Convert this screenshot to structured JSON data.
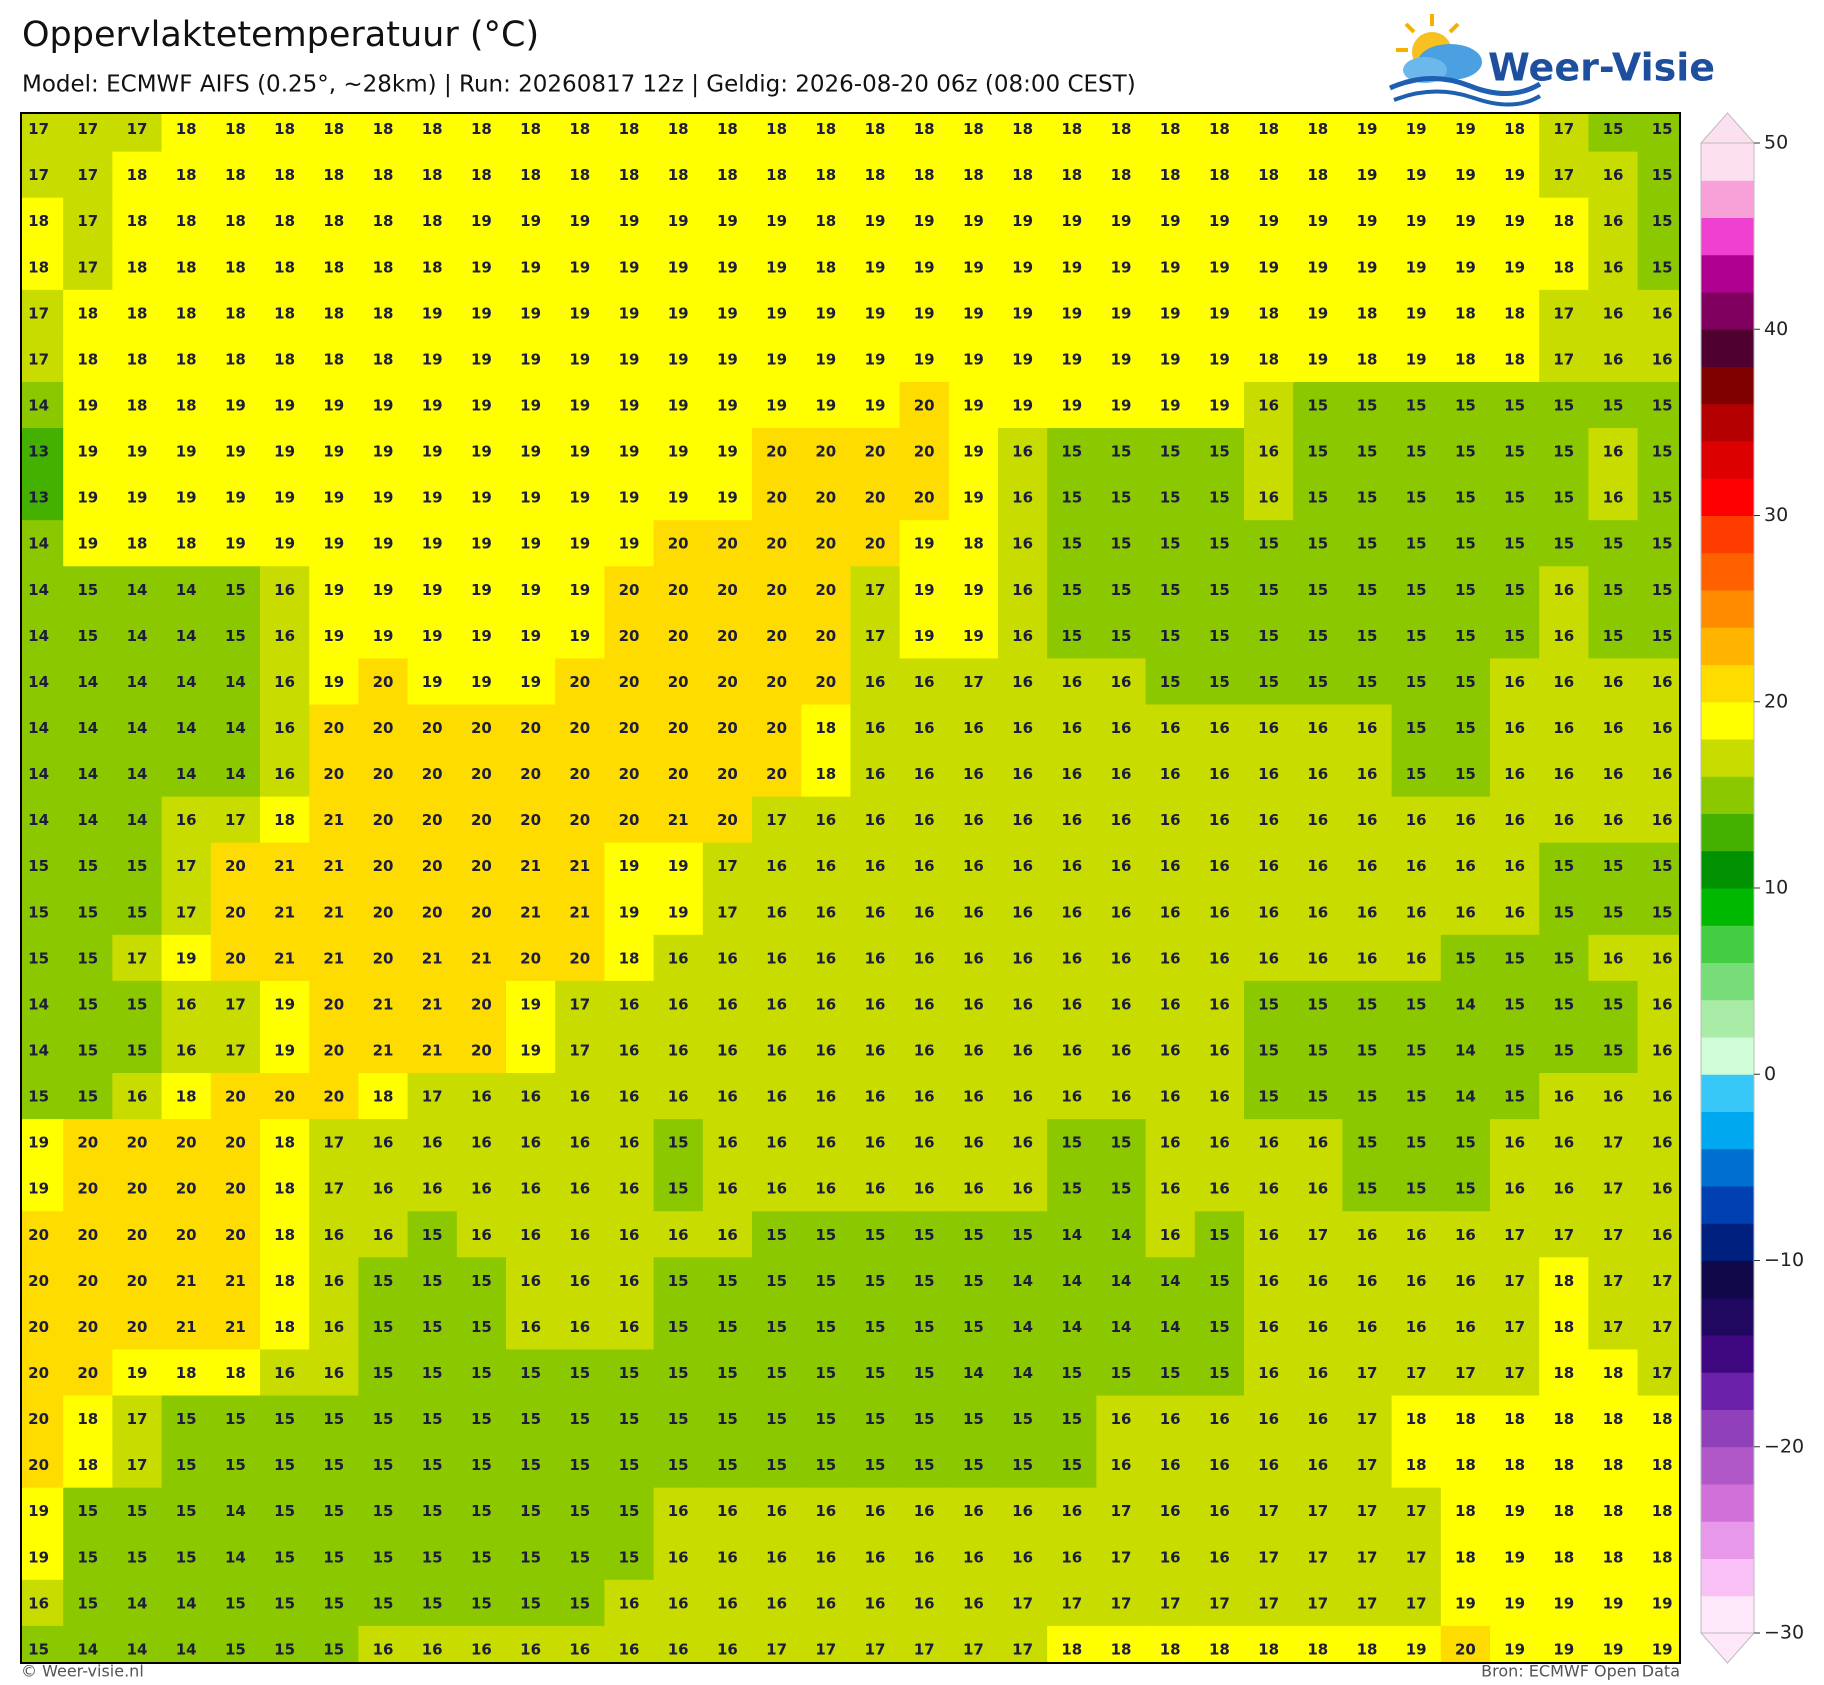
{
  "header": {
    "title": "Oppervlaktetemperatuur (°C)",
    "subtitle": "Model: ECMWF AIFS (0.25°, ~28km)  |  Run: 20260817 12z  |  Geldig: 2026-08-20 06z (08:00 CEST)"
  },
  "logo": "Weer-Visie",
  "map": {
    "grid": [
      [
        17,
        17,
        17,
        18,
        18,
        18,
        18,
        18,
        18,
        18,
        18,
        18,
        18,
        18,
        18,
        18,
        18,
        18,
        18,
        18,
        18,
        18,
        18,
        18,
        18,
        18,
        18,
        19,
        19,
        19,
        18,
        17,
        15,
        15
      ],
      [
        17,
        17,
        18,
        18,
        18,
        18,
        18,
        18,
        18,
        18,
        18,
        18,
        18,
        18,
        18,
        18,
        18,
        18,
        18,
        18,
        18,
        18,
        18,
        18,
        18,
        18,
        18,
        19,
        19,
        19,
        19,
        17,
        16,
        15
      ],
      [
        18,
        17,
        18,
        18,
        18,
        18,
        18,
        18,
        18,
        19,
        19,
        19,
        19,
        19,
        19,
        19,
        18,
        19,
        19,
        19,
        19,
        19,
        19,
        19,
        19,
        19,
        19,
        19,
        19,
        19,
        19,
        18,
        16,
        15
      ],
      [
        18,
        17,
        18,
        18,
        18,
        18,
        18,
        18,
        18,
        19,
        19,
        19,
        19,
        19,
        19,
        19,
        18,
        19,
        19,
        19,
        19,
        19,
        19,
        19,
        19,
        19,
        19,
        19,
        19,
        19,
        19,
        18,
        16,
        15
      ],
      [
        17,
        18,
        18,
        18,
        18,
        18,
        18,
        18,
        19,
        19,
        19,
        19,
        19,
        19,
        19,
        19,
        19,
        19,
        19,
        19,
        19,
        19,
        19,
        19,
        19,
        18,
        19,
        18,
        19,
        18,
        18,
        17,
        16,
        16
      ],
      [
        17,
        18,
        18,
        18,
        18,
        18,
        18,
        18,
        19,
        19,
        19,
        19,
        19,
        19,
        19,
        19,
        19,
        19,
        19,
        19,
        19,
        19,
        19,
        19,
        19,
        18,
        19,
        18,
        19,
        18,
        18,
        17,
        16,
        16
      ],
      [
        14,
        19,
        18,
        18,
        19,
        19,
        19,
        19,
        19,
        19,
        19,
        19,
        19,
        19,
        19,
        19,
        19,
        19,
        20,
        19,
        19,
        19,
        19,
        19,
        19,
        16,
        15,
        15,
        15,
        15,
        15,
        15,
        15,
        15
      ],
      [
        13,
        19,
        19,
        19,
        19,
        19,
        19,
        19,
        19,
        19,
        19,
        19,
        19,
        19,
        19,
        20,
        20,
        20,
        20,
        19,
        16,
        15,
        15,
        15,
        15,
        16,
        15,
        15,
        15,
        15,
        15,
        15,
        16,
        15
      ],
      [
        13,
        19,
        19,
        19,
        19,
        19,
        19,
        19,
        19,
        19,
        19,
        19,
        19,
        19,
        19,
        20,
        20,
        20,
        20,
        19,
        16,
        15,
        15,
        15,
        15,
        16,
        15,
        15,
        15,
        15,
        15,
        15,
        16,
        15
      ],
      [
        14,
        19,
        18,
        18,
        19,
        19,
        19,
        19,
        19,
        19,
        19,
        19,
        19,
        20,
        20,
        20,
        20,
        20,
        19,
        18,
        16,
        15,
        15,
        15,
        15,
        15,
        15,
        15,
        15,
        15,
        15,
        15,
        15,
        15
      ],
      [
        14,
        15,
        14,
        14,
        15,
        16,
        19,
        19,
        19,
        19,
        19,
        19,
        20,
        20,
        20,
        20,
        20,
        17,
        19,
        19,
        16,
        15,
        15,
        15,
        15,
        15,
        15,
        15,
        15,
        15,
        15,
        16,
        15,
        15
      ],
      [
        14,
        15,
        14,
        14,
        15,
        16,
        19,
        19,
        19,
        19,
        19,
        19,
        20,
        20,
        20,
        20,
        20,
        17,
        19,
        19,
        16,
        15,
        15,
        15,
        15,
        15,
        15,
        15,
        15,
        15,
        15,
        16,
        15,
        15
      ],
      [
        14,
        14,
        14,
        14,
        14,
        16,
        19,
        20,
        19,
        19,
        19,
        20,
        20,
        20,
        20,
        20,
        20,
        16,
        16,
        17,
        16,
        16,
        16,
        15,
        15,
        15,
        15,
        15,
        15,
        15,
        16,
        16,
        16,
        16
      ],
      [
        14,
        14,
        14,
        14,
        14,
        16,
        20,
        20,
        20,
        20,
        20,
        20,
        20,
        20,
        20,
        20,
        18,
        16,
        16,
        16,
        16,
        16,
        16,
        16,
        16,
        16,
        16,
        16,
        15,
        15,
        16,
        16,
        16,
        16
      ],
      [
        14,
        14,
        14,
        14,
        14,
        16,
        20,
        20,
        20,
        20,
        20,
        20,
        20,
        20,
        20,
        20,
        18,
        16,
        16,
        16,
        16,
        16,
        16,
        16,
        16,
        16,
        16,
        16,
        15,
        15,
        16,
        16,
        16,
        16
      ],
      [
        14,
        14,
        14,
        16,
        17,
        18,
        21,
        20,
        20,
        20,
        20,
        20,
        20,
        21,
        20,
        17,
        16,
        16,
        16,
        16,
        16,
        16,
        16,
        16,
        16,
        16,
        16,
        16,
        16,
        16,
        16,
        16,
        16,
        16
      ],
      [
        15,
        15,
        15,
        17,
        20,
        21,
        21,
        20,
        20,
        20,
        21,
        21,
        19,
        19,
        17,
        16,
        16,
        16,
        16,
        16,
        16,
        16,
        16,
        16,
        16,
        16,
        16,
        16,
        16,
        16,
        16,
        15,
        15,
        15
      ],
      [
        15,
        15,
        15,
        17,
        20,
        21,
        21,
        20,
        20,
        20,
        21,
        21,
        19,
        19,
        17,
        16,
        16,
        16,
        16,
        16,
        16,
        16,
        16,
        16,
        16,
        16,
        16,
        16,
        16,
        16,
        16,
        15,
        15,
        15
      ],
      [
        15,
        15,
        17,
        19,
        20,
        21,
        21,
        20,
        21,
        21,
        20,
        20,
        18,
        16,
        16,
        16,
        16,
        16,
        16,
        16,
        16,
        16,
        16,
        16,
        16,
        16,
        16,
        16,
        16,
        15,
        15,
        15,
        16,
        16
      ],
      [
        14,
        15,
        15,
        16,
        17,
        19,
        20,
        21,
        21,
        20,
        19,
        17,
        16,
        16,
        16,
        16,
        16,
        16,
        16,
        16,
        16,
        16,
        16,
        16,
        16,
        15,
        15,
        15,
        15,
        14,
        15,
        15,
        15,
        16
      ],
      [
        14,
        15,
        15,
        16,
        17,
        19,
        20,
        21,
        21,
        20,
        19,
        17,
        16,
        16,
        16,
        16,
        16,
        16,
        16,
        16,
        16,
        16,
        16,
        16,
        16,
        15,
        15,
        15,
        15,
        14,
        15,
        15,
        15,
        16
      ],
      [
        15,
        15,
        16,
        18,
        20,
        20,
        20,
        18,
        17,
        16,
        16,
        16,
        16,
        16,
        16,
        16,
        16,
        16,
        16,
        16,
        16,
        16,
        16,
        16,
        16,
        15,
        15,
        15,
        15,
        14,
        15,
        16,
        16,
        16
      ],
      [
        19,
        20,
        20,
        20,
        20,
        18,
        17,
        16,
        16,
        16,
        16,
        16,
        16,
        15,
        16,
        16,
        16,
        16,
        16,
        16,
        16,
        15,
        15,
        16,
        16,
        16,
        16,
        15,
        15,
        15,
        16,
        16,
        17,
        16
      ],
      [
        19,
        20,
        20,
        20,
        20,
        18,
        17,
        16,
        16,
        16,
        16,
        16,
        16,
        15,
        16,
        16,
        16,
        16,
        16,
        16,
        16,
        15,
        15,
        16,
        16,
        16,
        16,
        15,
        15,
        15,
        16,
        16,
        17,
        16
      ],
      [
        20,
        20,
        20,
        20,
        20,
        18,
        16,
        16,
        15,
        16,
        16,
        16,
        16,
        16,
        16,
        15,
        15,
        15,
        15,
        15,
        15,
        14,
        14,
        16,
        15,
        16,
        17,
        16,
        16,
        16,
        17,
        17,
        17,
        16
      ],
      [
        20,
        20,
        20,
        21,
        21,
        18,
        16,
        15,
        15,
        15,
        16,
        16,
        16,
        15,
        15,
        15,
        15,
        15,
        15,
        15,
        14,
        14,
        14,
        14,
        15,
        16,
        16,
        16,
        16,
        16,
        17,
        18,
        17,
        17
      ],
      [
        20,
        20,
        20,
        21,
        21,
        18,
        16,
        15,
        15,
        15,
        16,
        16,
        16,
        15,
        15,
        15,
        15,
        15,
        15,
        15,
        14,
        14,
        14,
        14,
        15,
        16,
        16,
        16,
        16,
        16,
        17,
        18,
        17,
        17
      ],
      [
        20,
        20,
        19,
        18,
        18,
        16,
        16,
        15,
        15,
        15,
        15,
        15,
        15,
        15,
        15,
        15,
        15,
        15,
        15,
        14,
        14,
        15,
        15,
        15,
        15,
        16,
        16,
        17,
        17,
        17,
        17,
        18,
        18,
        17
      ],
      [
        20,
        18,
        17,
        15,
        15,
        15,
        15,
        15,
        15,
        15,
        15,
        15,
        15,
        15,
        15,
        15,
        15,
        15,
        15,
        15,
        15,
        15,
        16,
        16,
        16,
        16,
        16,
        17,
        18,
        18,
        18,
        18,
        18,
        18
      ],
      [
        20,
        18,
        17,
        15,
        15,
        15,
        15,
        15,
        15,
        15,
        15,
        15,
        15,
        15,
        15,
        15,
        15,
        15,
        15,
        15,
        15,
        15,
        16,
        16,
        16,
        16,
        16,
        17,
        18,
        18,
        18,
        18,
        18,
        18
      ],
      [
        19,
        15,
        15,
        15,
        14,
        15,
        15,
        15,
        15,
        15,
        15,
        15,
        15,
        16,
        16,
        16,
        16,
        16,
        16,
        16,
        16,
        16,
        17,
        16,
        16,
        17,
        17,
        17,
        17,
        18,
        19,
        18,
        18,
        18
      ],
      [
        19,
        15,
        15,
        15,
        14,
        15,
        15,
        15,
        15,
        15,
        15,
        15,
        15,
        16,
        16,
        16,
        16,
        16,
        16,
        16,
        16,
        16,
        17,
        16,
        16,
        17,
        17,
        17,
        17,
        18,
        19,
        18,
        18,
        18
      ],
      [
        16,
        15,
        14,
        14,
        15,
        15,
        15,
        15,
        15,
        15,
        15,
        15,
        16,
        16,
        16,
        16,
        16,
        16,
        16,
        16,
        17,
        17,
        17,
        17,
        17,
        17,
        17,
        17,
        17,
        19,
        19,
        19,
        19,
        19
      ],
      [
        15,
        14,
        14,
        14,
        15,
        15,
        15,
        16,
        16,
        16,
        16,
        16,
        16,
        16,
        16,
        17,
        17,
        17,
        17,
        17,
        17,
        18,
        18,
        18,
        18,
        18,
        18,
        18,
        19,
        20,
        19,
        19,
        19,
        19
      ]
    ]
  },
  "colorbar": {
    "lim": [
      -30,
      50
    ],
    "ticks": [
      {
        "value": -30,
        "label": "−30"
      },
      {
        "value": -20,
        "label": "−20"
      },
      {
        "value": -10,
        "label": "−10"
      },
      0,
      10,
      20,
      30,
      40,
      50
    ],
    "colors": [
      "#fde8fa",
      "#f8c0f4",
      "#e898e8",
      "#d070d8",
      "#b058c8",
      "#9040b8",
      "#6a20a8",
      "#400880",
      "#200860",
      "#100848",
      "#002080",
      "#0040b0",
      "#0070d0",
      "#00a8f0",
      "#38c8f8",
      "#d0fcd8",
      "#a8eca8",
      "#78dc78",
      "#44cc44",
      "#00b800",
      "#009000",
      "#44b000",
      "#8cc800",
      "#c8dc00",
      "#ffff00",
      "#ffdc00",
      "#ffb400",
      "#ff8c00",
      "#ff6000",
      "#ff3c00",
      "#ff0000",
      "#dd0000",
      "#b40000",
      "#800000",
      "#500030",
      "#800060",
      "#b00090",
      "#f040d0",
      "#f8a0d8",
      "#fde0f0"
    ]
  },
  "footer": {
    "left": "© Weer-visie.nl",
    "right": "Bron: ECMWF Open Data"
  }
}
